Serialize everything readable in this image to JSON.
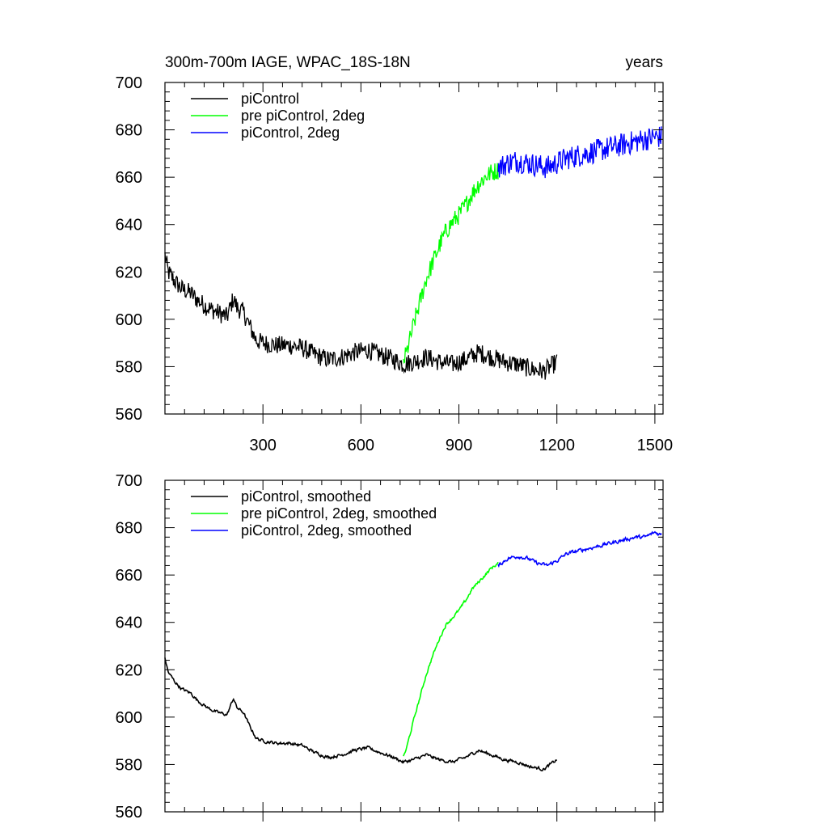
{
  "chart_data": [
    {
      "type": "line",
      "title_left": "300m-700m IAGE, WPAC_18S-18N",
      "title_right": "years",
      "xlim": [
        0,
        1525
      ],
      "ylim": [
        560,
        700
      ],
      "xticks": [
        300,
        600,
        900,
        1200,
        1500
      ],
      "xtick_labels": [
        "300",
        "600",
        "900",
        "1200",
        "1500"
      ],
      "yticks": [
        560,
        580,
        600,
        620,
        640,
        660,
        680,
        700
      ],
      "ytick_labels": [
        "560",
        "580",
        "600",
        "620",
        "640",
        "660",
        "680",
        "700"
      ],
      "legend_position": "top-left",
      "grid": false,
      "series": [
        {
          "name": "piControl",
          "color": "#000000",
          "x": [
            0,
            10,
            30,
            50,
            80,
            100,
            130,
            160,
            190,
            210,
            220,
            240,
            260,
            280,
            300,
            340,
            380,
            420,
            460,
            500,
            540,
            580,
            620,
            660,
            700,
            730,
            760,
            800,
            840,
            880,
            920,
            960,
            1000,
            1040,
            1080,
            1120,
            1160,
            1200
          ],
          "y": [
            627,
            620,
            616,
            613,
            611,
            608,
            605,
            603,
            601,
            609,
            605,
            603,
            597,
            591,
            590,
            589,
            589,
            588,
            585,
            583,
            584,
            586,
            587,
            585,
            583,
            581,
            582,
            584,
            582,
            581,
            583,
            586,
            584,
            582,
            581,
            579,
            578,
            582
          ],
          "noise": 4
        },
        {
          "name": "pre piControl, 2deg",
          "color": "#00ff00",
          "x": [
            730,
            740,
            760,
            780,
            800,
            820,
            840,
            860,
            880,
            900,
            920,
            940,
            960,
            980,
            1000,
            1020
          ],
          "y": [
            582,
            586,
            597,
            607,
            617,
            624,
            631,
            637,
            641,
            644,
            648,
            653,
            657,
            660,
            662,
            663
          ],
          "noise": 4
        },
        {
          "name": "piControl, 2deg",
          "color": "#0000ff",
          "x": [
            1020,
            1050,
            1080,
            1110,
            1140,
            1170,
            1200,
            1230,
            1260,
            1290,
            1320,
            1350,
            1380,
            1410,
            1440,
            1470,
            1500,
            1520
          ],
          "y": [
            664,
            666,
            667,
            666,
            665,
            664,
            666,
            668,
            669,
            670,
            671,
            672,
            673,
            674,
            675,
            676,
            677,
            677
          ],
          "noise": 5
        }
      ]
    },
    {
      "type": "line",
      "xlim": [
        0,
        1525
      ],
      "ylim": [
        560,
        700
      ],
      "xticks": [
        300,
        600,
        900,
        1200,
        1500
      ],
      "yticks": [
        560,
        580,
        600,
        620,
        640,
        660,
        680,
        700
      ],
      "ytick_labels": [
        "560",
        "580",
        "600",
        "620",
        "640",
        "660",
        "680",
        "700"
      ],
      "legend_position": "top-left",
      "grid": false,
      "series": [
        {
          "name": "piControl, smoothed",
          "color": "#000000",
          "x": [
            0,
            10,
            30,
            50,
            80,
            100,
            130,
            160,
            190,
            210,
            220,
            240,
            260,
            280,
            300,
            340,
            380,
            420,
            460,
            500,
            540,
            580,
            620,
            660,
            700,
            730,
            760,
            800,
            840,
            880,
            920,
            960,
            1000,
            1040,
            1080,
            1120,
            1160,
            1200
          ],
          "y": [
            625,
            619,
            615,
            612,
            610,
            607,
            604,
            602,
            601,
            608,
            604,
            602,
            596,
            591,
            590,
            589,
            589,
            588,
            585,
            583,
            584,
            586,
            587,
            585,
            583,
            581,
            582,
            584,
            582,
            581,
            583,
            586,
            584,
            582,
            581,
            579,
            578,
            582
          ],
          "noise": 1.2
        },
        {
          "name": "pre piControl, 2deg, smoothed",
          "color": "#00ff00",
          "x": [
            730,
            740,
            760,
            780,
            800,
            820,
            840,
            860,
            880,
            900,
            920,
            940,
            960,
            980,
            1000,
            1020
          ],
          "y": [
            583,
            587,
            598,
            608,
            618,
            626,
            633,
            639,
            642,
            645,
            649,
            654,
            657,
            660,
            663,
            665
          ],
          "noise": 1.2
        },
        {
          "name": "piControl, 2deg, smoothed",
          "color": "#0000ff",
          "x": [
            1020,
            1050,
            1080,
            1110,
            1140,
            1170,
            1200,
            1230,
            1260,
            1290,
            1320,
            1350,
            1380,
            1410,
            1440,
            1470,
            1500,
            1520
          ],
          "y": [
            664,
            667,
            668,
            667,
            665,
            664,
            666,
            669,
            670,
            671,
            672,
            673,
            674,
            675,
            676,
            676,
            678,
            677
          ],
          "noise": 1.4
        }
      ]
    }
  ]
}
